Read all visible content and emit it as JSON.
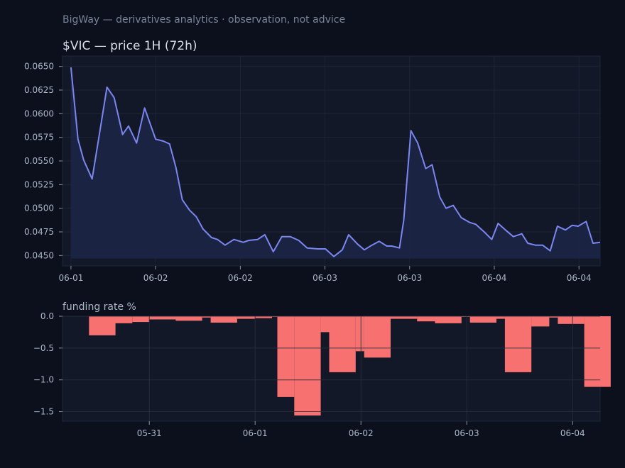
{
  "page": {
    "subtitle": "BigWay — derivatives analytics · observation, not advice",
    "background": "#0b101c",
    "panel_background": "#121828"
  },
  "chart_data": [
    {
      "type": "line",
      "title": "$VIC — price 1H (72h)",
      "xlabel": "",
      "ylabel": "",
      "color": "#7b86f0",
      "fill": "area",
      "grid": true,
      "legend": "none",
      "xlim": [
        -1.0,
        62.5
      ],
      "ylim": [
        0.0439,
        0.0661
      ],
      "yticks": [
        0.045,
        0.0475,
        0.05,
        0.0525,
        0.055,
        0.0575,
        0.06,
        0.0625,
        0.065
      ],
      "ytick_labels": [
        "0.0450",
        "0.0475",
        "0.0500",
        "0.0525",
        "0.0550",
        "0.0575",
        "0.0600",
        "0.0625",
        "0.0650"
      ],
      "xticks": [
        0,
        10,
        20,
        30,
        40,
        50,
        60
      ],
      "xtick_labels": [
        "06-01",
        "06-02",
        "06-02",
        "06-03",
        "06-03",
        "06-04",
        "06-04"
      ],
      "x": [
        0,
        0.83,
        1.5,
        2.5,
        3.5,
        4.25,
        5.1,
        6.1,
        6.8,
        7.75,
        8.7,
        10.0,
        10.9,
        11.65,
        12.4,
        13.15,
        14.0,
        14.8,
        15.6,
        16.6,
        17.3,
        18.2,
        19.25,
        20.35,
        21.0,
        22.05,
        22.9,
        23.9,
        24.9,
        25.9,
        26.9,
        27.9,
        29.15,
        30.05,
        31.05,
        32.05,
        32.8,
        33.85,
        34.65,
        35.55,
        36.4,
        37.3,
        37.9,
        38.8,
        39.3,
        40.15,
        40.95,
        41.9,
        42.65,
        43.55,
        44.3,
        45.15,
        46.1,
        47.1,
        47.8,
        48.8,
        49.7,
        50.45,
        51.45,
        52.25,
        53.25,
        53.95,
        54.85,
        55.7,
        56.6,
        57.45,
        58.4,
        59.2,
        59.9,
        60.85,
        61.65,
        62.5
      ],
      "y": [
        0.0649,
        0.0573,
        0.0551,
        0.0531,
        0.0586,
        0.0628,
        0.0617,
        0.0578,
        0.0587,
        0.0569,
        0.0606,
        0.0573,
        0.0571,
        0.0568,
        0.0543,
        0.0509,
        0.0498,
        0.0491,
        0.0478,
        0.0469,
        0.0467,
        0.0461,
        0.0467,
        0.0464,
        0.0466,
        0.0467,
        0.0472,
        0.0454,
        0.047,
        0.047,
        0.0466,
        0.0458,
        0.0457,
        0.0457,
        0.0449,
        0.0456,
        0.0472,
        0.0462,
        0.0456,
        0.0461,
        0.0465,
        0.046,
        0.046,
        0.0458,
        0.0487,
        0.0582,
        0.0569,
        0.0542,
        0.0546,
        0.0512,
        0.05,
        0.0503,
        0.049,
        0.0485,
        0.0483,
        0.0475,
        0.0467,
        0.0484,
        0.0476,
        0.047,
        0.0473,
        0.0463,
        0.0461,
        0.0461,
        0.0455,
        0.0481,
        0.0477,
        0.0482,
        0.0481,
        0.0486,
        0.0463,
        0.0464
      ]
    },
    {
      "type": "bar",
      "title": "funding rate %",
      "xlabel": "",
      "ylabel": "",
      "color": "#f87171",
      "grid": true,
      "legend": "none",
      "xlim": [
        -0.32,
        4.76
      ],
      "ylim": [
        -1.65,
        0.0
      ],
      "yticks": [
        0.0,
        -0.5,
        -1.0,
        -1.5
      ],
      "ytick_labels": [
        "0.0",
        "−0.5",
        "−1.0",
        "−1.5"
      ],
      "xticks": [
        0.5,
        1.5,
        2.5,
        3.5,
        4.5
      ],
      "xtick_labels": [
        "05-31",
        "06-01",
        "06-02",
        "06-03",
        "06-04"
      ],
      "bars": [
        {
          "x0": -0.07,
          "x1": 0.18,
          "value": -0.3
        },
        {
          "x0": 0.18,
          "x1": 0.34,
          "value": -0.11
        },
        {
          "x0": 0.34,
          "x1": 0.5,
          "value": -0.09
        },
        {
          "x0": 0.5,
          "x1": 0.75,
          "value": -0.05
        },
        {
          "x0": 0.75,
          "x1": 1.0,
          "value": -0.07
        },
        {
          "x0": 1.0,
          "x1": 1.08,
          "value": -0.02
        },
        {
          "x0": 1.08,
          "x1": 1.33,
          "value": -0.1
        },
        {
          "x0": 1.33,
          "x1": 1.5,
          "value": -0.04
        },
        {
          "x0": 1.5,
          "x1": 1.66,
          "value": -0.03
        },
        {
          "x0": 1.66,
          "x1": 1.71,
          "value": -0.01
        },
        {
          "x0": 1.71,
          "x1": 1.87,
          "value": -1.27
        },
        {
          "x0": 1.87,
          "x1": 2.12,
          "value": -1.56
        },
        {
          "x0": 2.12,
          "x1": 2.2,
          "value": -0.25
        },
        {
          "x0": 2.2,
          "x1": 2.45,
          "value": -0.88
        },
        {
          "x0": 2.45,
          "x1": 2.53,
          "value": -0.55
        },
        {
          "x0": 2.53,
          "x1": 2.78,
          "value": -0.65
        },
        {
          "x0": 2.78,
          "x1": 3.03,
          "value": -0.04
        },
        {
          "x0": 3.03,
          "x1": 3.2,
          "value": -0.08
        },
        {
          "x0": 3.2,
          "x1": 3.45,
          "value": -0.11
        },
        {
          "x0": 3.45,
          "x1": 3.53,
          "value": -0.01
        },
        {
          "x0": 3.53,
          "x1": 3.78,
          "value": -0.1
        },
        {
          "x0": 3.78,
          "x1": 3.86,
          "value": -0.04
        },
        {
          "x0": 3.86,
          "x1": 4.11,
          "value": -0.88
        },
        {
          "x0": 4.11,
          "x1": 4.28,
          "value": -0.16
        },
        {
          "x0": 4.28,
          "x1": 4.36,
          "value": -0.02
        },
        {
          "x0": 4.36,
          "x1": 4.61,
          "value": -0.12
        },
        {
          "x0": 4.61,
          "x1": 4.61,
          "value": -0.12
        },
        {
          "x0": 4.61,
          "x1": 4.86,
          "value": -1.11
        }
      ]
    }
  ]
}
